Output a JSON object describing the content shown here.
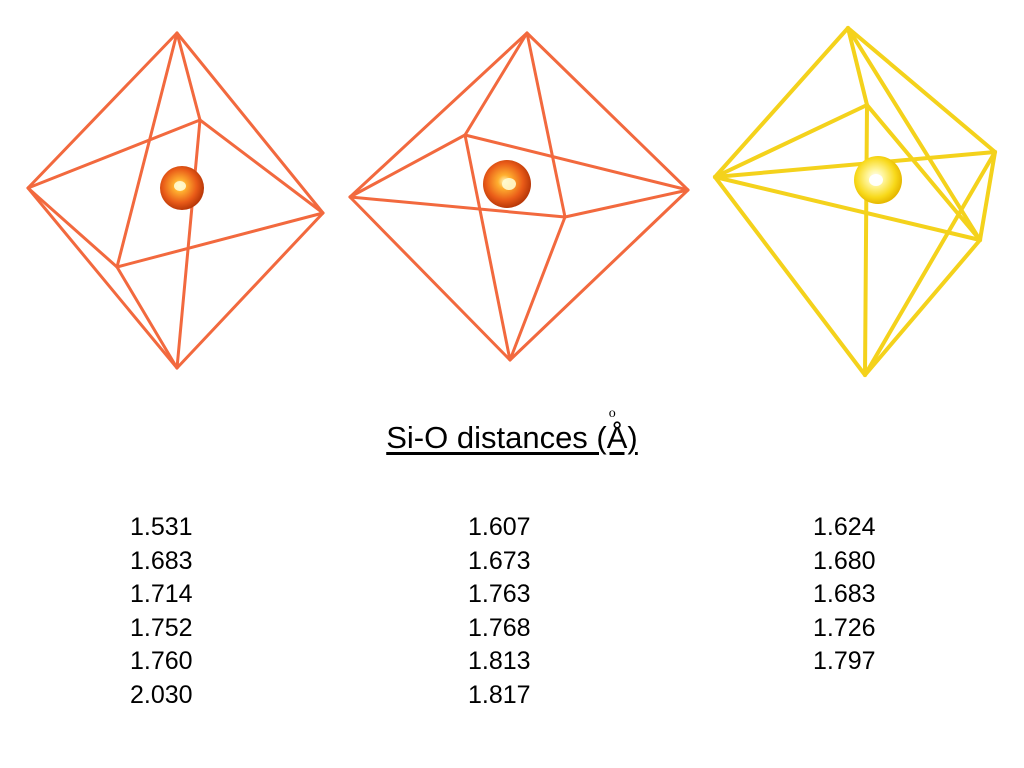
{
  "title": "Si-O distances (Å)",
  "title_ring": "o",
  "colors": {
    "octahedron_edge_1": "#f2693e",
    "octahedron_edge_2": "#f2693e",
    "octahedron_edge_3": "#f4d21c",
    "atom_red": "#e9541f",
    "atom_yellow": "#f8d91a"
  },
  "columns": [
    {
      "values": [
        "1.531",
        "1.683",
        "1.714",
        "1.752",
        "1.760",
        "2.030"
      ]
    },
    {
      "values": [
        "1.607",
        "1.673",
        "1.763",
        "1.768",
        "1.813",
        "1.817"
      ]
    },
    {
      "values": [
        "1.624",
        "1.680",
        "1.683",
        "1.726",
        "1.797"
      ]
    }
  ]
}
